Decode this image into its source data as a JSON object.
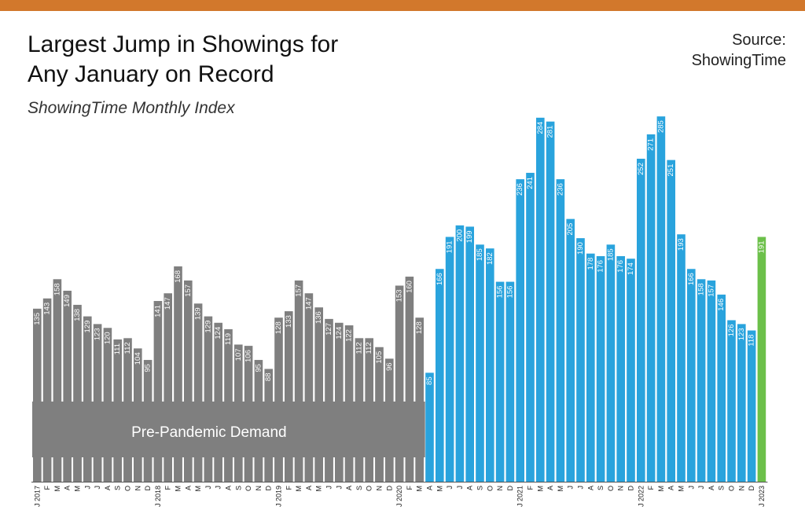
{
  "colors": {
    "accent_bar": "#d2782c",
    "pre_pandemic": "#7f7f7f",
    "pandemic": "#29a3dd",
    "latest": "#6cc04a"
  },
  "header": {
    "title_line1": "Largest Jump in Showings for",
    "title_line2": "Any January on Record",
    "subtitle": "ShowingTime Monthly Index",
    "source_line1": "Source:",
    "source_line2": "ShowingTime"
  },
  "chart_data": {
    "type": "bar",
    "title": "Largest Jump in Showings for Any January on Record",
    "subtitle": "ShowingTime Monthly Index",
    "xlabel": "",
    "ylabel": "",
    "ylim": [
      0,
      300
    ],
    "grid": false,
    "legend": "none",
    "annotation": "Pre-Pandemic Demand",
    "categories": [
      "J 2017",
      "F",
      "M",
      "A",
      "M",
      "J",
      "J",
      "A",
      "S",
      "O",
      "N",
      "D",
      "J 2018",
      "F",
      "M",
      "A",
      "M",
      "J",
      "J",
      "A",
      "S",
      "O",
      "N",
      "D",
      "J 2019",
      "F",
      "M",
      "A",
      "M",
      "J",
      "J",
      "A",
      "S",
      "O",
      "N",
      "D",
      "J 2020",
      "F",
      "M",
      "A",
      "M",
      "J",
      "J",
      "A",
      "S",
      "O",
      "N",
      "D",
      "J 2021",
      "F",
      "M",
      "A",
      "M",
      "J",
      "J",
      "A",
      "S",
      "O",
      "N",
      "D",
      "J 2022",
      "F",
      "M",
      "A",
      "M",
      "J",
      "J",
      "A",
      "S",
      "O",
      "N",
      "D",
      "J 2023"
    ],
    "values": [
      135,
      143,
      158,
      149,
      138,
      129,
      123,
      120,
      111,
      112,
      104,
      95,
      141,
      147,
      168,
      157,
      139,
      129,
      124,
      119,
      107,
      106,
      95,
      88,
      128,
      133,
      157,
      147,
      136,
      127,
      124,
      122,
      112,
      112,
      105,
      96,
      153,
      160,
      128,
      85,
      166,
      191,
      200,
      199,
      185,
      182,
      156,
      156,
      236,
      241,
      284,
      281,
      236,
      205,
      190,
      178,
      176,
      185,
      176,
      174,
      252,
      271,
      285,
      251,
      193,
      166,
      158,
      157,
      146,
      126,
      123,
      118,
      191
    ],
    "groups": [
      {
        "name": "Pre-Pandemic Demand",
        "from": 0,
        "to": 38
      },
      {
        "name": "",
        "from": 39,
        "to": 71
      },
      {
        "name": "",
        "from": 72,
        "to": 72
      }
    ]
  }
}
